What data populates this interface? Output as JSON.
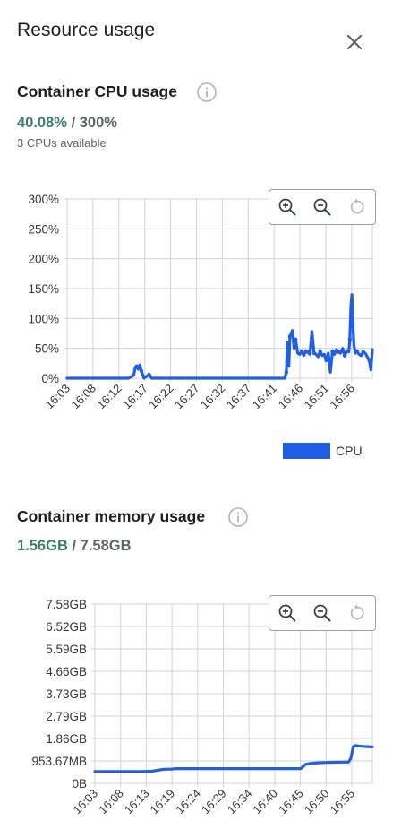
{
  "panel": {
    "title": "Resource usage"
  },
  "colors": {
    "series": "#1f5ee5",
    "grid": "#cfd3da",
    "used": "#3b7f6b",
    "muted": "#5f6368"
  },
  "cpu": {
    "title": "Container CPU usage",
    "current": "40.08%",
    "separator": "/",
    "max": "300%",
    "available": "3 CPUs available",
    "legend": "CPU",
    "toolbar": [
      "zoom-in-icon",
      "zoom-out-icon",
      "reset-zoom-icon"
    ]
  },
  "memory": {
    "title": "Container memory usage",
    "current": "1.56GB",
    "separator": "/",
    "max": "7.58GB",
    "toolbar": [
      "zoom-in-icon",
      "zoom-out-icon",
      "reset-zoom-icon"
    ]
  },
  "chart_data": [
    {
      "type": "line",
      "title": "",
      "y_tick_labels": [
        "300%",
        "250%",
        "200%",
        "150%",
        "100%",
        "50%",
        "0%"
      ],
      "ylim": [
        0,
        300
      ],
      "x_tick_labels": [
        "16:03",
        "16:08",
        "16:12",
        "16:17",
        "16:22",
        "16:27",
        "16:32",
        "16:37",
        "16:41",
        "16:46",
        "16:51",
        "16:56"
      ],
      "grid": true,
      "legend_position": "bottom-right",
      "series": [
        {
          "name": "CPU",
          "x_minutes_from_1603": [
            0,
            4,
            8,
            12,
            13,
            13.3,
            13.6,
            13.9,
            14.2,
            14.5,
            15,
            15.5,
            16,
            16.5,
            17,
            20,
            25,
            30,
            35,
            40,
            42.5,
            42.8,
            43,
            43.3,
            43.5,
            44,
            44.3,
            44.6,
            45,
            45.4,
            45.8,
            46.2,
            46.6,
            47,
            47.4,
            47.8,
            48.2,
            48.6,
            49,
            49.4,
            49.8,
            50.2,
            50.6,
            51,
            51.4,
            51.8,
            52.2,
            52.6,
            53,
            53.4,
            53.8,
            54.2,
            54.6,
            55,
            55.2,
            55.4,
            55.6,
            55.8,
            56,
            56.3,
            56.6,
            57,
            57.4,
            57.8,
            58.2,
            58.6,
            59,
            59.3,
            59.6
          ],
          "values": [
            0,
            0,
            0,
            0,
            5,
            18,
            20,
            15,
            22,
            12,
            0,
            3,
            6,
            0,
            0,
            0,
            0,
            0,
            0,
            0,
            0,
            10,
            60,
            20,
            70,
            80,
            50,
            65,
            42,
            40,
            45,
            38,
            46,
            44,
            40,
            78,
            42,
            40,
            36,
            45,
            38,
            40,
            30,
            42,
            10,
            45,
            40,
            48,
            44,
            42,
            50,
            38,
            46,
            44,
            65,
            120,
            140,
            90,
            55,
            42,
            45,
            40,
            38,
            44,
            42,
            36,
            30,
            14,
            48
          ]
        }
      ]
    },
    {
      "type": "line",
      "title": "",
      "y_tick_labels": [
        "7.58GB",
        "6.52GB",
        "5.59GB",
        "4.66GB",
        "3.73GB",
        "2.79GB",
        "1.86GB",
        "953.67MB",
        "0B"
      ],
      "ylim": [
        0,
        7.58
      ],
      "x_tick_labels": [
        "16:03",
        "16:08",
        "16:13",
        "16:19",
        "16:24",
        "16:29",
        "16:34",
        "16:40",
        "16:45",
        "16:50",
        "16:55"
      ],
      "grid": true,
      "series": [
        {
          "name": "",
          "x_minutes_from_1603": [
            0,
            5,
            10,
            12,
            13,
            14,
            15,
            16,
            17,
            20,
            25,
            30,
            35,
            40,
            43,
            43.5,
            44,
            44.5,
            45,
            46,
            47,
            48,
            50,
            52,
            53,
            53.5,
            54,
            54.5,
            55,
            56,
            57,
            58
          ],
          "values": [
            0.5,
            0.5,
            0.5,
            0.51,
            0.55,
            0.58,
            0.6,
            0.6,
            0.62,
            0.62,
            0.62,
            0.62,
            0.62,
            0.62,
            0.62,
            0.7,
            0.8,
            0.82,
            0.84,
            0.86,
            0.87,
            0.88,
            0.89,
            0.9,
            0.9,
            1.05,
            1.55,
            1.6,
            1.58,
            1.56,
            1.55,
            1.54
          ]
        }
      ]
    }
  ]
}
